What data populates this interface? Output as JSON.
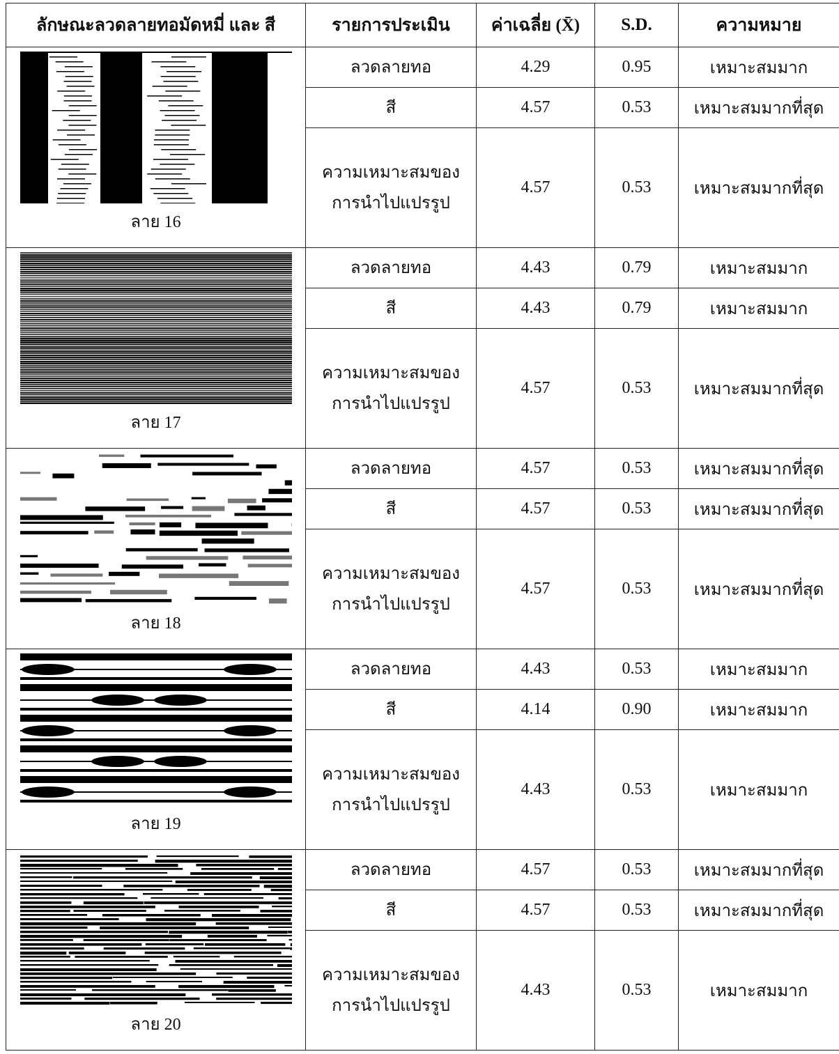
{
  "header": [
    "ลักษณะลวดลายทอมัดหมี่ และ สี",
    "รายการประเมิน",
    "ค่าเฉลี่ย (X̄)",
    "S.D.",
    "ความหมาย"
  ],
  "groups": [
    {
      "label": "ลาย 16",
      "rows": [
        {
          "item": [
            "ลวดลายทอ"
          ],
          "mean": "4.29",
          "sd": "0.95",
          "meaning": "เหมาะสมมาก"
        },
        {
          "item": [
            "สี"
          ],
          "mean": "4.57",
          "sd": "0.53",
          "meaning": "เหมาะสมมากที่สุด"
        },
        {
          "item": [
            "ความเหมาะสมของ",
            "การนำไปแปรรูป"
          ],
          "mean": "4.57",
          "sd": "0.53",
          "meaning": "เหมาะสมมากที่สุด"
        }
      ]
    },
    {
      "label": "ลาย 17",
      "rows": [
        {
          "item": [
            "ลวดลายทอ"
          ],
          "mean": "4.43",
          "sd": "0.79",
          "meaning": "เหมาะสมมาก"
        },
        {
          "item": [
            "สี"
          ],
          "mean": "4.43",
          "sd": "0.79",
          "meaning": "เหมาะสมมาก"
        },
        {
          "item": [
            "ความเหมาะสมของ",
            "การนำไปแปรรูป"
          ],
          "mean": "4.57",
          "sd": "0.53",
          "meaning": "เหมาะสมมากที่สุด"
        }
      ]
    },
    {
      "label": "ลาย 18",
      "rows": [
        {
          "item": [
            "ลวดลายทอ"
          ],
          "mean": "4.57",
          "sd": "0.53",
          "meaning": "เหมาะสมมากที่สุด"
        },
        {
          "item": [
            "สี"
          ],
          "mean": "4.57",
          "sd": "0.53",
          "meaning": "เหมาะสมมากที่สุด"
        },
        {
          "item": [
            "ความเหมาะสมของ",
            "การนำไปแปรรูป"
          ],
          "mean": "4.57",
          "sd": "0.53",
          "meaning": "เหมาะสมมากที่สุด"
        }
      ]
    },
    {
      "label": "ลาย 19",
      "rows": [
        {
          "item": [
            "ลวดลายทอ"
          ],
          "mean": "4.43",
          "sd": "0.53",
          "meaning": "เหมาะสมมาก"
        },
        {
          "item": [
            "สี"
          ],
          "mean": "4.14",
          "sd": "0.90",
          "meaning": "เหมาะสมมาก"
        },
        {
          "item": [
            "ความเหมาะสมของ",
            "การนำไปแปรรูป"
          ],
          "mean": "4.43",
          "sd": "0.53",
          "meaning": "เหมาะสมมาก"
        }
      ]
    },
    {
      "label": "ลาย 20",
      "rows": [
        {
          "item": [
            "ลวดลายทอ"
          ],
          "mean": "4.57",
          "sd": "0.53",
          "meaning": "เหมาะสมมากที่สุด"
        },
        {
          "item": [
            "สี"
          ],
          "mean": "4.57",
          "sd": "0.53",
          "meaning": "เหมาะสมมากที่สุด"
        },
        {
          "item": [
            "ความเหมาะสมของ",
            "การนำไปแปรรูป"
          ],
          "mean": "4.43",
          "sd": "0.53",
          "meaning": "เหมาะสมมาก"
        }
      ]
    }
  ]
}
